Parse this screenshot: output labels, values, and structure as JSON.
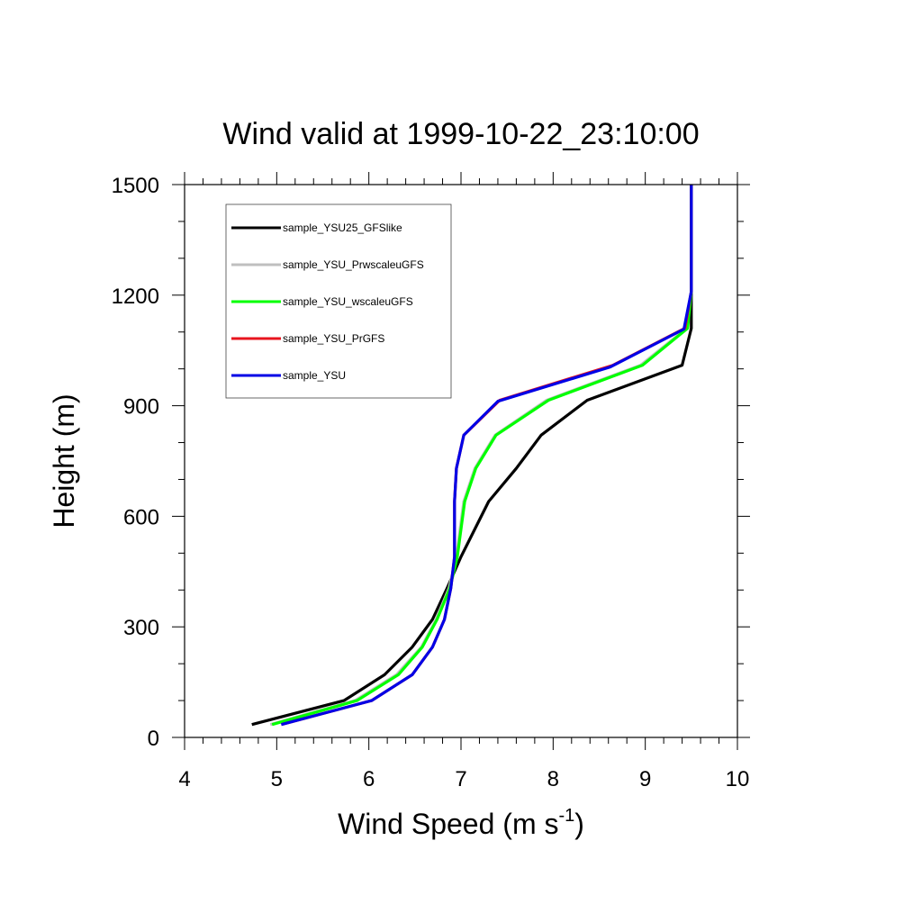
{
  "chart_data": {
    "type": "line",
    "title": "Wind valid at 1999-10-22_23:10:00",
    "xlabel": "Wind Speed (m s",
    "xlabel_superscript": "-1",
    "xlabel_close": ")",
    "ylabel": "Height (m)",
    "xlim": [
      4,
      10
    ],
    "ylim": [
      0,
      1500
    ],
    "xticks": [
      4,
      5,
      6,
      7,
      8,
      9,
      10
    ],
    "yticks": [
      0,
      300,
      600,
      900,
      1200,
      1500
    ],
    "grid": false,
    "legend": "top-left",
    "series": [
      {
        "name": "sample_YSU25_GFSlike",
        "color": "#000000",
        "points": [
          [
            4.73,
            35
          ],
          [
            5.73,
            100
          ],
          [
            6.17,
            170
          ],
          [
            6.47,
            245
          ],
          [
            6.69,
            320
          ],
          [
            6.85,
            405
          ],
          [
            7.0,
            490
          ],
          [
            7.3,
            640
          ],
          [
            7.6,
            730
          ],
          [
            7.87,
            820
          ],
          [
            8.37,
            915
          ],
          [
            9.4,
            1010
          ],
          [
            9.5,
            1110
          ],
          [
            9.5,
            1210
          ],
          [
            9.5,
            1500
          ]
        ]
      },
      {
        "name": "sample_YSU_PrwscaleuGFS",
        "color": "#bfbfbf",
        "points": [
          [
            4.93,
            35
          ],
          [
            5.85,
            100
          ],
          [
            6.3,
            170
          ],
          [
            6.57,
            245
          ],
          [
            6.73,
            320
          ],
          [
            6.87,
            405
          ],
          [
            6.95,
            490
          ],
          [
            7.03,
            640
          ],
          [
            7.15,
            730
          ],
          [
            7.37,
            820
          ],
          [
            7.93,
            915
          ],
          [
            8.95,
            1010
          ],
          [
            9.45,
            1110
          ],
          [
            9.5,
            1210
          ],
          [
            9.5,
            1500
          ]
        ]
      },
      {
        "name": "sample_YSU_wscaleuGFS",
        "color": "#00ff00",
        "points": [
          [
            4.95,
            35
          ],
          [
            5.87,
            100
          ],
          [
            6.32,
            170
          ],
          [
            6.58,
            245
          ],
          [
            6.74,
            320
          ],
          [
            6.88,
            405
          ],
          [
            6.96,
            490
          ],
          [
            7.04,
            640
          ],
          [
            7.16,
            730
          ],
          [
            7.38,
            820
          ],
          [
            7.95,
            915
          ],
          [
            8.97,
            1010
          ],
          [
            9.46,
            1110
          ],
          [
            9.5,
            1210
          ],
          [
            9.5,
            1500
          ]
        ]
      },
      {
        "name": "sample_YSU_PrGFS",
        "color": "#e8141e",
        "points": [
          [
            5.05,
            35
          ],
          [
            6.03,
            100
          ],
          [
            6.47,
            170
          ],
          [
            6.69,
            245
          ],
          [
            6.82,
            320
          ],
          [
            6.89,
            405
          ],
          [
            6.93,
            490
          ],
          [
            6.93,
            640
          ],
          [
            6.95,
            730
          ],
          [
            7.03,
            820
          ],
          [
            7.42,
            915
          ],
          [
            8.65,
            1010
          ],
          [
            9.43,
            1110
          ],
          [
            9.5,
            1210
          ],
          [
            9.5,
            1500
          ]
        ]
      },
      {
        "name": "sample_YSU",
        "color": "#0000e6",
        "points": [
          [
            5.05,
            35
          ],
          [
            6.03,
            100
          ],
          [
            6.47,
            170
          ],
          [
            6.69,
            245
          ],
          [
            6.82,
            320
          ],
          [
            6.89,
            405
          ],
          [
            6.93,
            490
          ],
          [
            6.93,
            640
          ],
          [
            6.95,
            730
          ],
          [
            7.03,
            820
          ],
          [
            7.4,
            912
          ],
          [
            8.62,
            1005
          ],
          [
            9.42,
            1108
          ],
          [
            9.5,
            1210
          ],
          [
            9.5,
            1500
          ]
        ]
      }
    ]
  }
}
